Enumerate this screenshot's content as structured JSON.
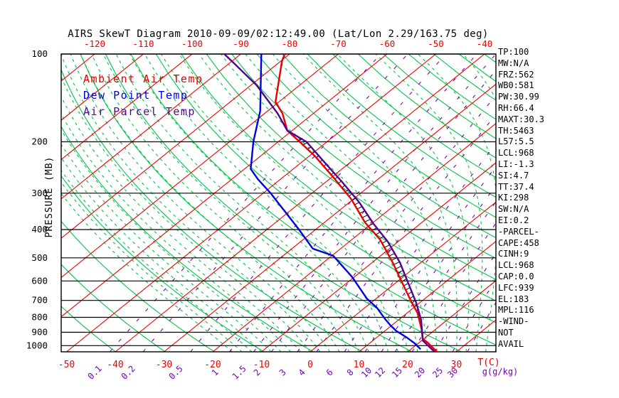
{
  "title": "AIRS SkewT Diagram 2010-09-09/02:12:49.00 (Lat/Lon 2.29/163.75 deg)",
  "colors": {
    "isotherm": "#f00000",
    "dry_adiabat": "#00c44a",
    "moist_adiabat": "#00c44a",
    "mixing_ratio": "#7a00b4",
    "pressure_line": "#000000",
    "ambient": "#e60000",
    "dewpoint": "#0000dc",
    "parcel": "#550096",
    "hatch": "#000000",
    "axis_text": "#000000",
    "temp_label": "#f00000",
    "mixing_label": "#7a00b4"
  },
  "legend": {
    "items": [
      {
        "label": "Ambient Air Temp",
        "color": "#e60000"
      },
      {
        "label": "Dew Point Temp",
        "color": "#0000dc"
      },
      {
        "label": "Air Parcel Temp",
        "color": "#550096"
      }
    ]
  },
  "axes": {
    "pressure_label": "PRESSURE (MB)",
    "pressure_ticks": [
      100,
      200,
      300,
      400,
      500,
      600,
      700,
      800,
      900,
      1000
    ],
    "top_temp_ticks": [
      -120,
      -110,
      -100,
      -90,
      -80,
      -70,
      -60,
      -50,
      -40
    ],
    "bottom_temp_ticks": [
      -50,
      -40,
      -30,
      -20,
      -10,
      0,
      10,
      20,
      30
    ],
    "temp_unit": "T(C)",
    "mixing_ratio_ticks": [
      0.1,
      0.2,
      0.5,
      1,
      1.5,
      2,
      3,
      4,
      6,
      8,
      10,
      12,
      15,
      20,
      25,
      30
    ],
    "mixing_unit": "g(g/kg)"
  },
  "stats": {
    "lines": [
      "TP:100",
      "MW:N/A",
      "FRZ:562",
      "WB0:581",
      "PW:30.99",
      "RH:66.4",
      "MAXT:30.3",
      "TH:5463",
      "L57:5.5",
      "LCL:968",
      "LI:-1.3",
      "SI:4.7",
      "TT:37.4",
      "KI:298",
      "SW:N/A",
      "EI:0.2",
      "-PARCEL-",
      "CAPE:458",
      "CINH:9",
      "LCL:968",
      "CAP:0.0",
      "LFC:939",
      "EL:183",
      "MPL:116",
      "-WIND-",
      "NOT",
      "AVAIL"
    ]
  },
  "chart_data": {
    "type": "line",
    "title": "AIRS SkewT Diagram 2010-09-09/02:12:49.00 (Lat/Lon 2.29/163.75 deg)",
    "xlabel": "Temperature (C)",
    "ylabel": "PRESSURE (MB)",
    "y_range_mb": [
      100,
      1050
    ],
    "x_range_c_at_surface": [
      -50,
      40
    ],
    "skew": "log-pressure skew-T",
    "series": [
      {
        "name": "Ambient Air Temp",
        "color": "#e60000",
        "points_p_t": [
          [
            100,
            -81
          ],
          [
            106,
            -79.7
          ],
          [
            146,
            -70.7
          ],
          [
            160,
            -66.3
          ],
          [
            183,
            -61
          ],
          [
            200,
            -55.6
          ],
          [
            224,
            -48.8
          ],
          [
            266,
            -39.4
          ],
          [
            314,
            -30.5
          ],
          [
            378,
            -21.7
          ],
          [
            433,
            -14.2
          ],
          [
            520,
            -5.7
          ],
          [
            617,
            1.9
          ],
          [
            718,
            8.7
          ],
          [
            772,
            12.1
          ],
          [
            876,
            17
          ],
          [
            946,
            19.7
          ],
          [
            977,
            21.8
          ],
          [
            1050,
            26
          ]
        ]
      },
      {
        "name": "Dew Point Temp",
        "color": "#0000dc",
        "points_p_t": [
          [
            100,
            -85.8
          ],
          [
            157,
            -71.5
          ],
          [
            200,
            -65.1
          ],
          [
            248,
            -58.7
          ],
          [
            269,
            -54.6
          ],
          [
            300,
            -48.5
          ],
          [
            346,
            -41
          ],
          [
            400,
            -33.4
          ],
          [
            465,
            -25.7
          ],
          [
            492,
            -19.7
          ],
          [
            582,
            -10.4
          ],
          [
            690,
            -1.9
          ],
          [
            742,
            2.5
          ],
          [
            815,
            7.3
          ],
          [
            850,
            9.6
          ],
          [
            890,
            12.3
          ],
          [
            918,
            14.6
          ],
          [
            937,
            16.1
          ],
          [
            978,
            19
          ],
          [
            1029,
            22
          ]
        ]
      },
      {
        "name": "Air Parcel Temp",
        "color": "#550096",
        "points_p_t": [
          [
            100,
            -93.4
          ],
          [
            108,
            -88.8
          ],
          [
            128,
            -78.8
          ],
          [
            160,
            -67.3
          ],
          [
            183,
            -61
          ],
          [
            200,
            -54.2
          ],
          [
            230,
            -46.5
          ],
          [
            273,
            -37
          ],
          [
            323,
            -27.9
          ],
          [
            382,
            -19.6
          ],
          [
            440,
            -12.1
          ],
          [
            520,
            -4.2
          ],
          [
            617,
            3.1
          ],
          [
            710,
            9.1
          ],
          [
            815,
            14.6
          ],
          [
            962,
            20.3
          ],
          [
            1050,
            25.5
          ]
        ]
      }
    ],
    "grid": {
      "isotherms_c": {
        "min": -140,
        "max": 40,
        "step": 10
      },
      "dry_adiabats_k": {
        "min": 230,
        "max": 480,
        "step": 10
      },
      "moist_adiabats_sfc_c": {
        "min": -16,
        "max": 44,
        "step": 2
      },
      "mixing_ratio_g_kg": [
        0.1,
        0.2,
        0.5,
        1,
        1.5,
        2,
        3,
        4,
        6,
        8,
        10,
        12,
        15,
        20,
        25,
        30
      ],
      "pressure_lines_mb": [
        100,
        200,
        300,
        400,
        500,
        600,
        700,
        800,
        900,
        1000
      ],
      "cape_hatch_between": [
        "Ambient Air Temp",
        "Air Parcel Temp"
      ],
      "hatch_p_range_mb": [
        190,
        950
      ]
    }
  }
}
